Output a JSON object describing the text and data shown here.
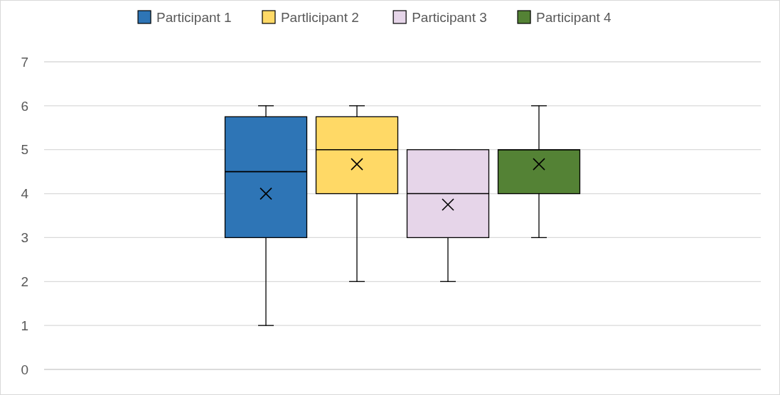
{
  "chart_data": {
    "type": "box",
    "categories": [
      null
    ],
    "ylim": [
      0,
      7
    ],
    "yticks": [
      0,
      1,
      2,
      3,
      4,
      5,
      6,
      7
    ],
    "grid": "y",
    "legend": "top",
    "marker": "cross",
    "series": [
      {
        "name": "Participant 1",
        "color": "#2e75b6",
        "boxes": [
          {
            "low": 1,
            "q1": 3,
            "median": 4.5,
            "q3": 5.75,
            "high": 6,
            "mean": 4
          }
        ]
      },
      {
        "name": "Partlicipant 2",
        "color": "#ffd966",
        "boxes": [
          {
            "low": 2,
            "q1": 4,
            "median": 5,
            "q3": 5.75,
            "high": 6,
            "mean": 4.67
          }
        ]
      },
      {
        "name": "Participant 3",
        "color": "#e6d5e9",
        "boxes": [
          {
            "low": 2,
            "q1": 3,
            "median": 4,
            "q3": 5,
            "high": 5,
            "mean": 3.75
          }
        ]
      },
      {
        "name": "Participant 4",
        "color": "#548235",
        "boxes": [
          {
            "low": 3,
            "q1": 4,
            "median": 5,
            "q3": 5,
            "high": 6,
            "mean": 4.67
          }
        ]
      }
    ]
  }
}
